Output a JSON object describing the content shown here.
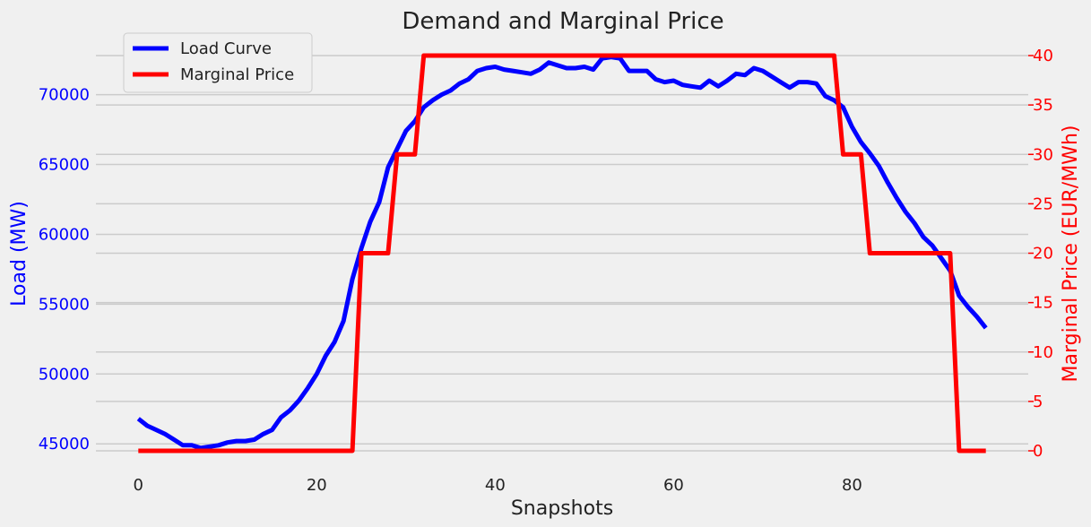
{
  "chart_data": {
    "type": "line",
    "title": "Demand and Marginal Price",
    "xlabel": "Snapshots",
    "x_ticks": [
      0,
      20,
      40,
      60,
      80
    ],
    "xlim": [
      -4.75,
      99.75
    ],
    "y_left": {
      "label": "Load (MW)",
      "color": "#0000ff",
      "ticks": [
        45000,
        50000,
        55000,
        60000,
        65000,
        70000
      ],
      "ylim": [
        44500,
        72800
      ]
    },
    "y_right": {
      "label": "Marginal Price (EUR/MWh)",
      "color": "#ff0000",
      "ticks": [
        0,
        5,
        10,
        15,
        20,
        25,
        30,
        35,
        40
      ],
      "ylim": [
        0,
        40
      ]
    },
    "grid": "horizontal",
    "legend_position": "top-left",
    "series": [
      {
        "name": "Load Curve",
        "axis": "left",
        "color": "#0000ff",
        "x": [
          0,
          1,
          2,
          3,
          4,
          5,
          6,
          7,
          8,
          9,
          10,
          11,
          12,
          13,
          14,
          15,
          16,
          17,
          18,
          19,
          20,
          21,
          22,
          23,
          24,
          25,
          26,
          27,
          28,
          29,
          30,
          31,
          32,
          33,
          34,
          35,
          36,
          37,
          38,
          39,
          40,
          41,
          42,
          43,
          44,
          45,
          46,
          47,
          48,
          49,
          50,
          51,
          52,
          53,
          54,
          55,
          56,
          57,
          58,
          59,
          60,
          61,
          62,
          63,
          64,
          65,
          66,
          67,
          68,
          69,
          70,
          71,
          72,
          73,
          74,
          75,
          76,
          77,
          78,
          79,
          80,
          81,
          82,
          83,
          84,
          85,
          86,
          87,
          88,
          89,
          90,
          91,
          92,
          93,
          94,
          95
        ],
        "values": [
          46800,
          46300,
          46000,
          45700,
          45300,
          44900,
          44900,
          44700,
          44800,
          44900,
          45100,
          45200,
          45200,
          45300,
          45700,
          46000,
          46900,
          47400,
          48100,
          49000,
          50000,
          51300,
          52300,
          53800,
          56800,
          59000,
          60900,
          62300,
          64800,
          66100,
          67400,
          68100,
          69100,
          69600,
          70000,
          70300,
          70800,
          71100,
          71700,
          71900,
          72000,
          71800,
          71700,
          71600,
          71500,
          71800,
          72300,
          72100,
          71900,
          71900,
          72000,
          71800,
          72600,
          72700,
          72600,
          71700,
          71700,
          71700,
          71100,
          70900,
          71000,
          70700,
          70600,
          70500,
          71000,
          70600,
          71000,
          71500,
          71400,
          71900,
          71700,
          71300,
          70900,
          70500,
          70900,
          70900,
          70800,
          69900,
          69600,
          69100,
          67700,
          66600,
          65800,
          64900,
          63700,
          62600,
          61600,
          60800,
          59800,
          59200,
          58300,
          57400,
          55600,
          54800,
          54100,
          53300
        ]
      },
      {
        "name": "Marginal Price",
        "axis": "right",
        "color": "#ff0000",
        "x": [
          0,
          1,
          2,
          3,
          4,
          5,
          6,
          7,
          8,
          9,
          10,
          11,
          12,
          13,
          14,
          15,
          16,
          17,
          18,
          19,
          20,
          21,
          22,
          23,
          24,
          25,
          26,
          27,
          28,
          29,
          30,
          31,
          32,
          33,
          34,
          35,
          36,
          37,
          38,
          39,
          40,
          41,
          42,
          43,
          44,
          45,
          46,
          47,
          48,
          49,
          50,
          51,
          52,
          53,
          54,
          55,
          56,
          57,
          58,
          59,
          60,
          61,
          62,
          63,
          64,
          65,
          66,
          67,
          68,
          69,
          70,
          71,
          72,
          73,
          74,
          75,
          76,
          77,
          78,
          79,
          80,
          81,
          82,
          83,
          84,
          85,
          86,
          87,
          88,
          89,
          90,
          91,
          92,
          93,
          94,
          95
        ],
        "values": [
          0,
          0,
          0,
          0,
          0,
          0,
          0,
          0,
          0,
          0,
          0,
          0,
          0,
          0,
          0,
          0,
          0,
          0,
          0,
          0,
          0,
          0,
          0,
          0,
          0,
          20,
          20,
          20,
          20,
          30,
          30,
          30,
          40,
          40,
          40,
          40,
          40,
          40,
          40,
          40,
          40,
          40,
          40,
          40,
          40,
          40,
          40,
          40,
          40,
          40,
          40,
          40,
          40,
          40,
          40,
          40,
          40,
          40,
          40,
          40,
          40,
          40,
          40,
          40,
          40,
          40,
          40,
          40,
          40,
          40,
          40,
          40,
          40,
          40,
          40,
          40,
          40,
          40,
          40,
          30,
          30,
          30,
          20,
          20,
          20,
          20,
          20,
          20,
          20,
          20,
          20,
          20,
          0,
          0,
          0,
          0
        ]
      }
    ]
  }
}
